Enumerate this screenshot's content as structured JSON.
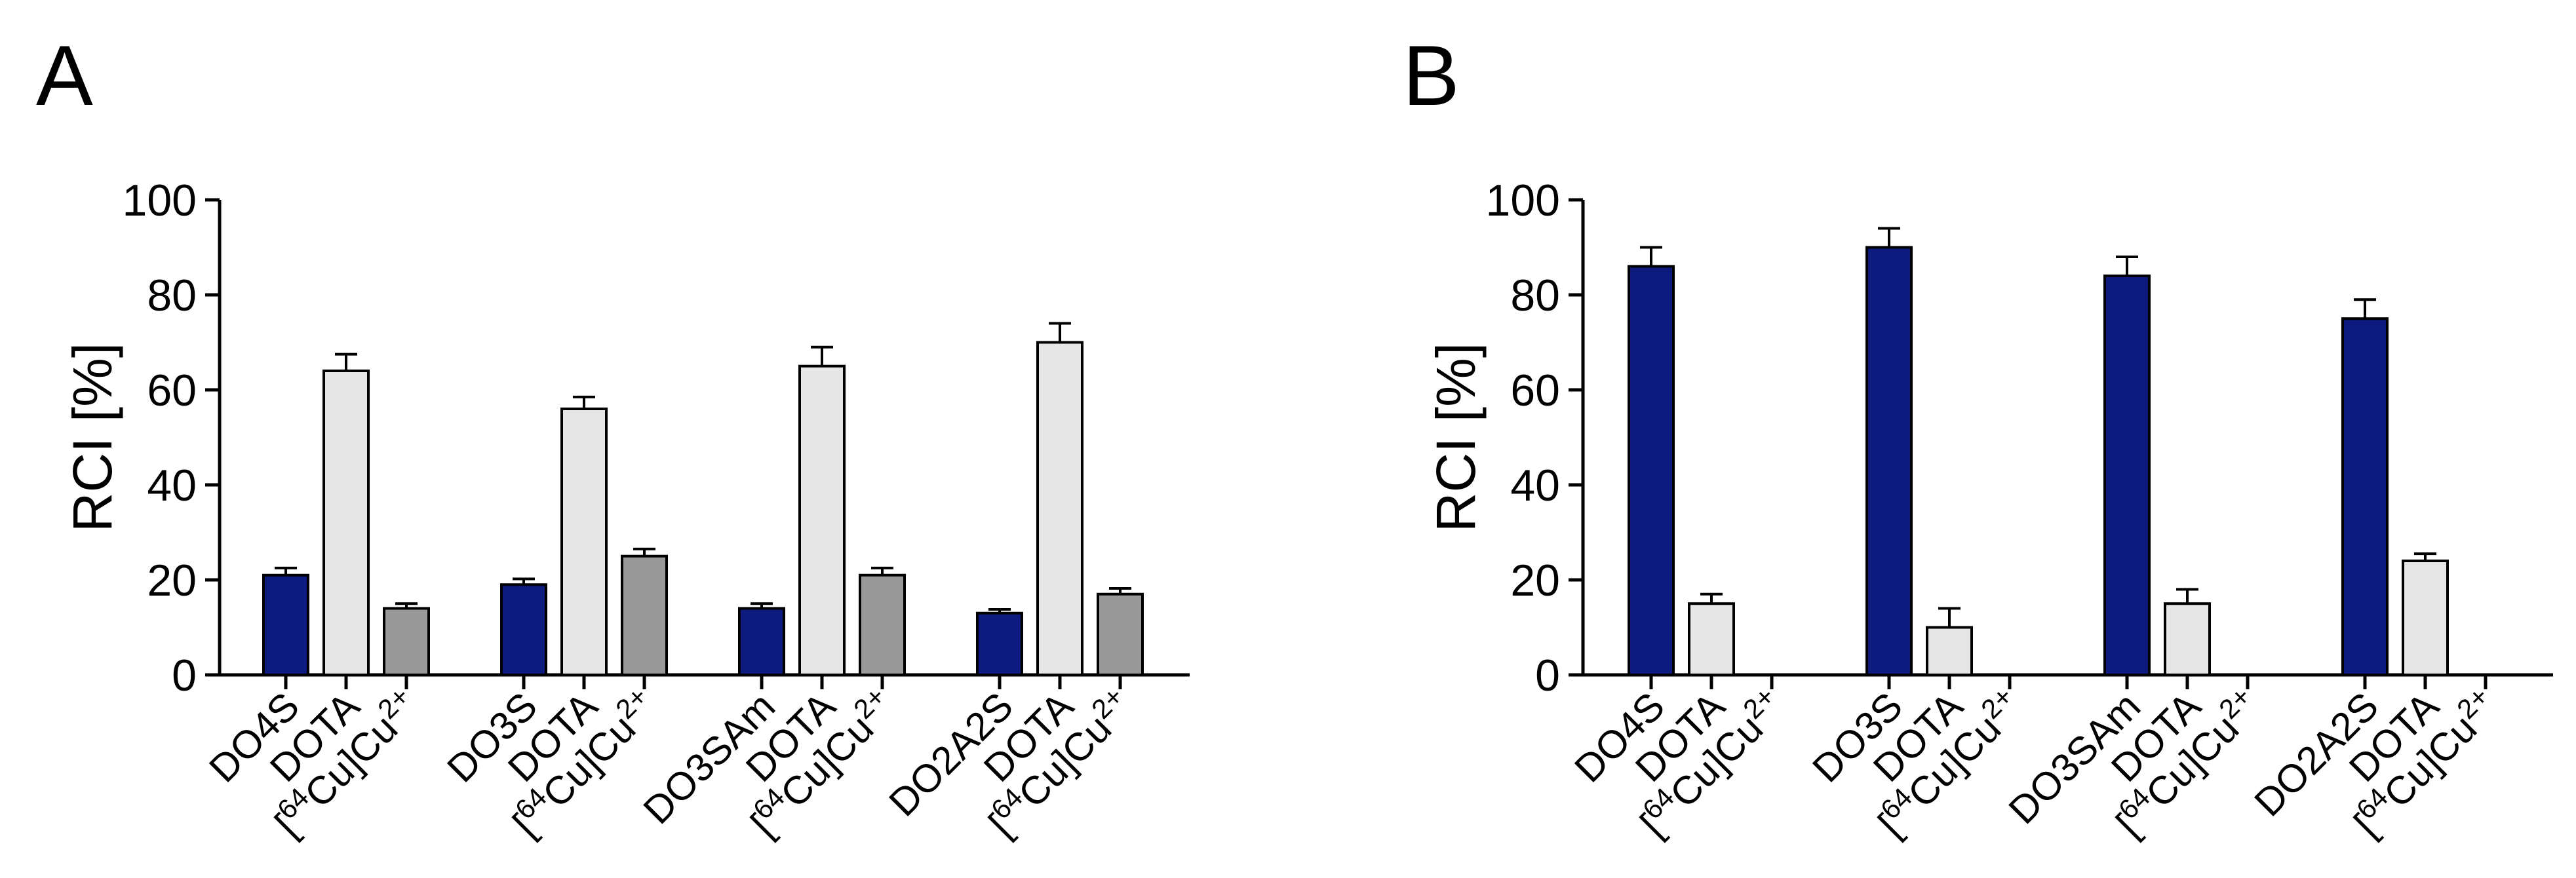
{
  "colors": {
    "chelator": "#0d1a7e",
    "dota": "#e6e6e6",
    "copper": "#999999"
  },
  "chart_data": [
    {
      "panel": "A",
      "type": "bar",
      "ylabel": "RCI [%]",
      "ylim": [
        0,
        100
      ],
      "yticks": [
        0,
        20,
        40,
        60,
        80,
        100
      ],
      "groups": [
        {
          "bars": [
            {
              "label": "DO4S",
              "value": 21,
              "error": 1.5,
              "color": "chelator"
            },
            {
              "label": "DOTA",
              "value": 64,
              "error": 3.5,
              "color": "dota"
            },
            {
              "label": "[64Cu]Cu2+",
              "value": 14,
              "error": 1,
              "color": "copper"
            }
          ]
        },
        {
          "bars": [
            {
              "label": "DO3S",
              "value": 19,
              "error": 1.2,
              "color": "chelator"
            },
            {
              "label": "DOTA",
              "value": 56,
              "error": 2.5,
              "color": "dota"
            },
            {
              "label": "[64Cu]Cu2+",
              "value": 25,
              "error": 1.5,
              "color": "copper"
            }
          ]
        },
        {
          "bars": [
            {
              "label": "DO3SAm",
              "value": 14,
              "error": 1,
              "color": "chelator"
            },
            {
              "label": "DOTA",
              "value": 65,
              "error": 4,
              "color": "dota"
            },
            {
              "label": "[64Cu]Cu2+",
              "value": 21,
              "error": 1.5,
              "color": "copper"
            }
          ]
        },
        {
          "bars": [
            {
              "label": "DO2A2S",
              "value": 13,
              "error": 0.8,
              "color": "chelator"
            },
            {
              "label": "DOTA",
              "value": 70,
              "error": 4,
              "color": "dota"
            },
            {
              "label": "[64Cu]Cu2+",
              "value": 17,
              "error": 1.2,
              "color": "copper"
            }
          ]
        }
      ]
    },
    {
      "panel": "B",
      "type": "bar",
      "ylabel": "RCI [%]",
      "ylim": [
        0,
        100
      ],
      "yticks": [
        0,
        20,
        40,
        60,
        80,
        100
      ],
      "groups": [
        {
          "bars": [
            {
              "label": "DO4S",
              "value": 86,
              "error": 4,
              "color": "chelator"
            },
            {
              "label": "DOTA",
              "value": 15,
              "error": 2,
              "color": "dota"
            },
            {
              "label": "[64Cu]Cu2+",
              "value": 0,
              "error": 0,
              "color": "copper"
            }
          ]
        },
        {
          "bars": [
            {
              "label": "DO3S",
              "value": 90,
              "error": 4,
              "color": "chelator"
            },
            {
              "label": "DOTA",
              "value": 10,
              "error": 4,
              "color": "dota"
            },
            {
              "label": "[64Cu]Cu2+",
              "value": 0,
              "error": 0,
              "color": "copper"
            }
          ]
        },
        {
          "bars": [
            {
              "label": "DO3SAm",
              "value": 84,
              "error": 4,
              "color": "chelator"
            },
            {
              "label": "DOTA",
              "value": 15,
              "error": 3,
              "color": "dota"
            },
            {
              "label": "[64Cu]Cu2+",
              "value": 0,
              "error": 0,
              "color": "copper"
            }
          ]
        },
        {
          "bars": [
            {
              "label": "DO2A2S",
              "value": 75,
              "error": 4,
              "color": "chelator"
            },
            {
              "label": "DOTA",
              "value": 24,
              "error": 1.5,
              "color": "dota"
            },
            {
              "label": "[64Cu]Cu2+",
              "value": 0,
              "error": 0,
              "color": "copper"
            }
          ]
        }
      ]
    }
  ]
}
